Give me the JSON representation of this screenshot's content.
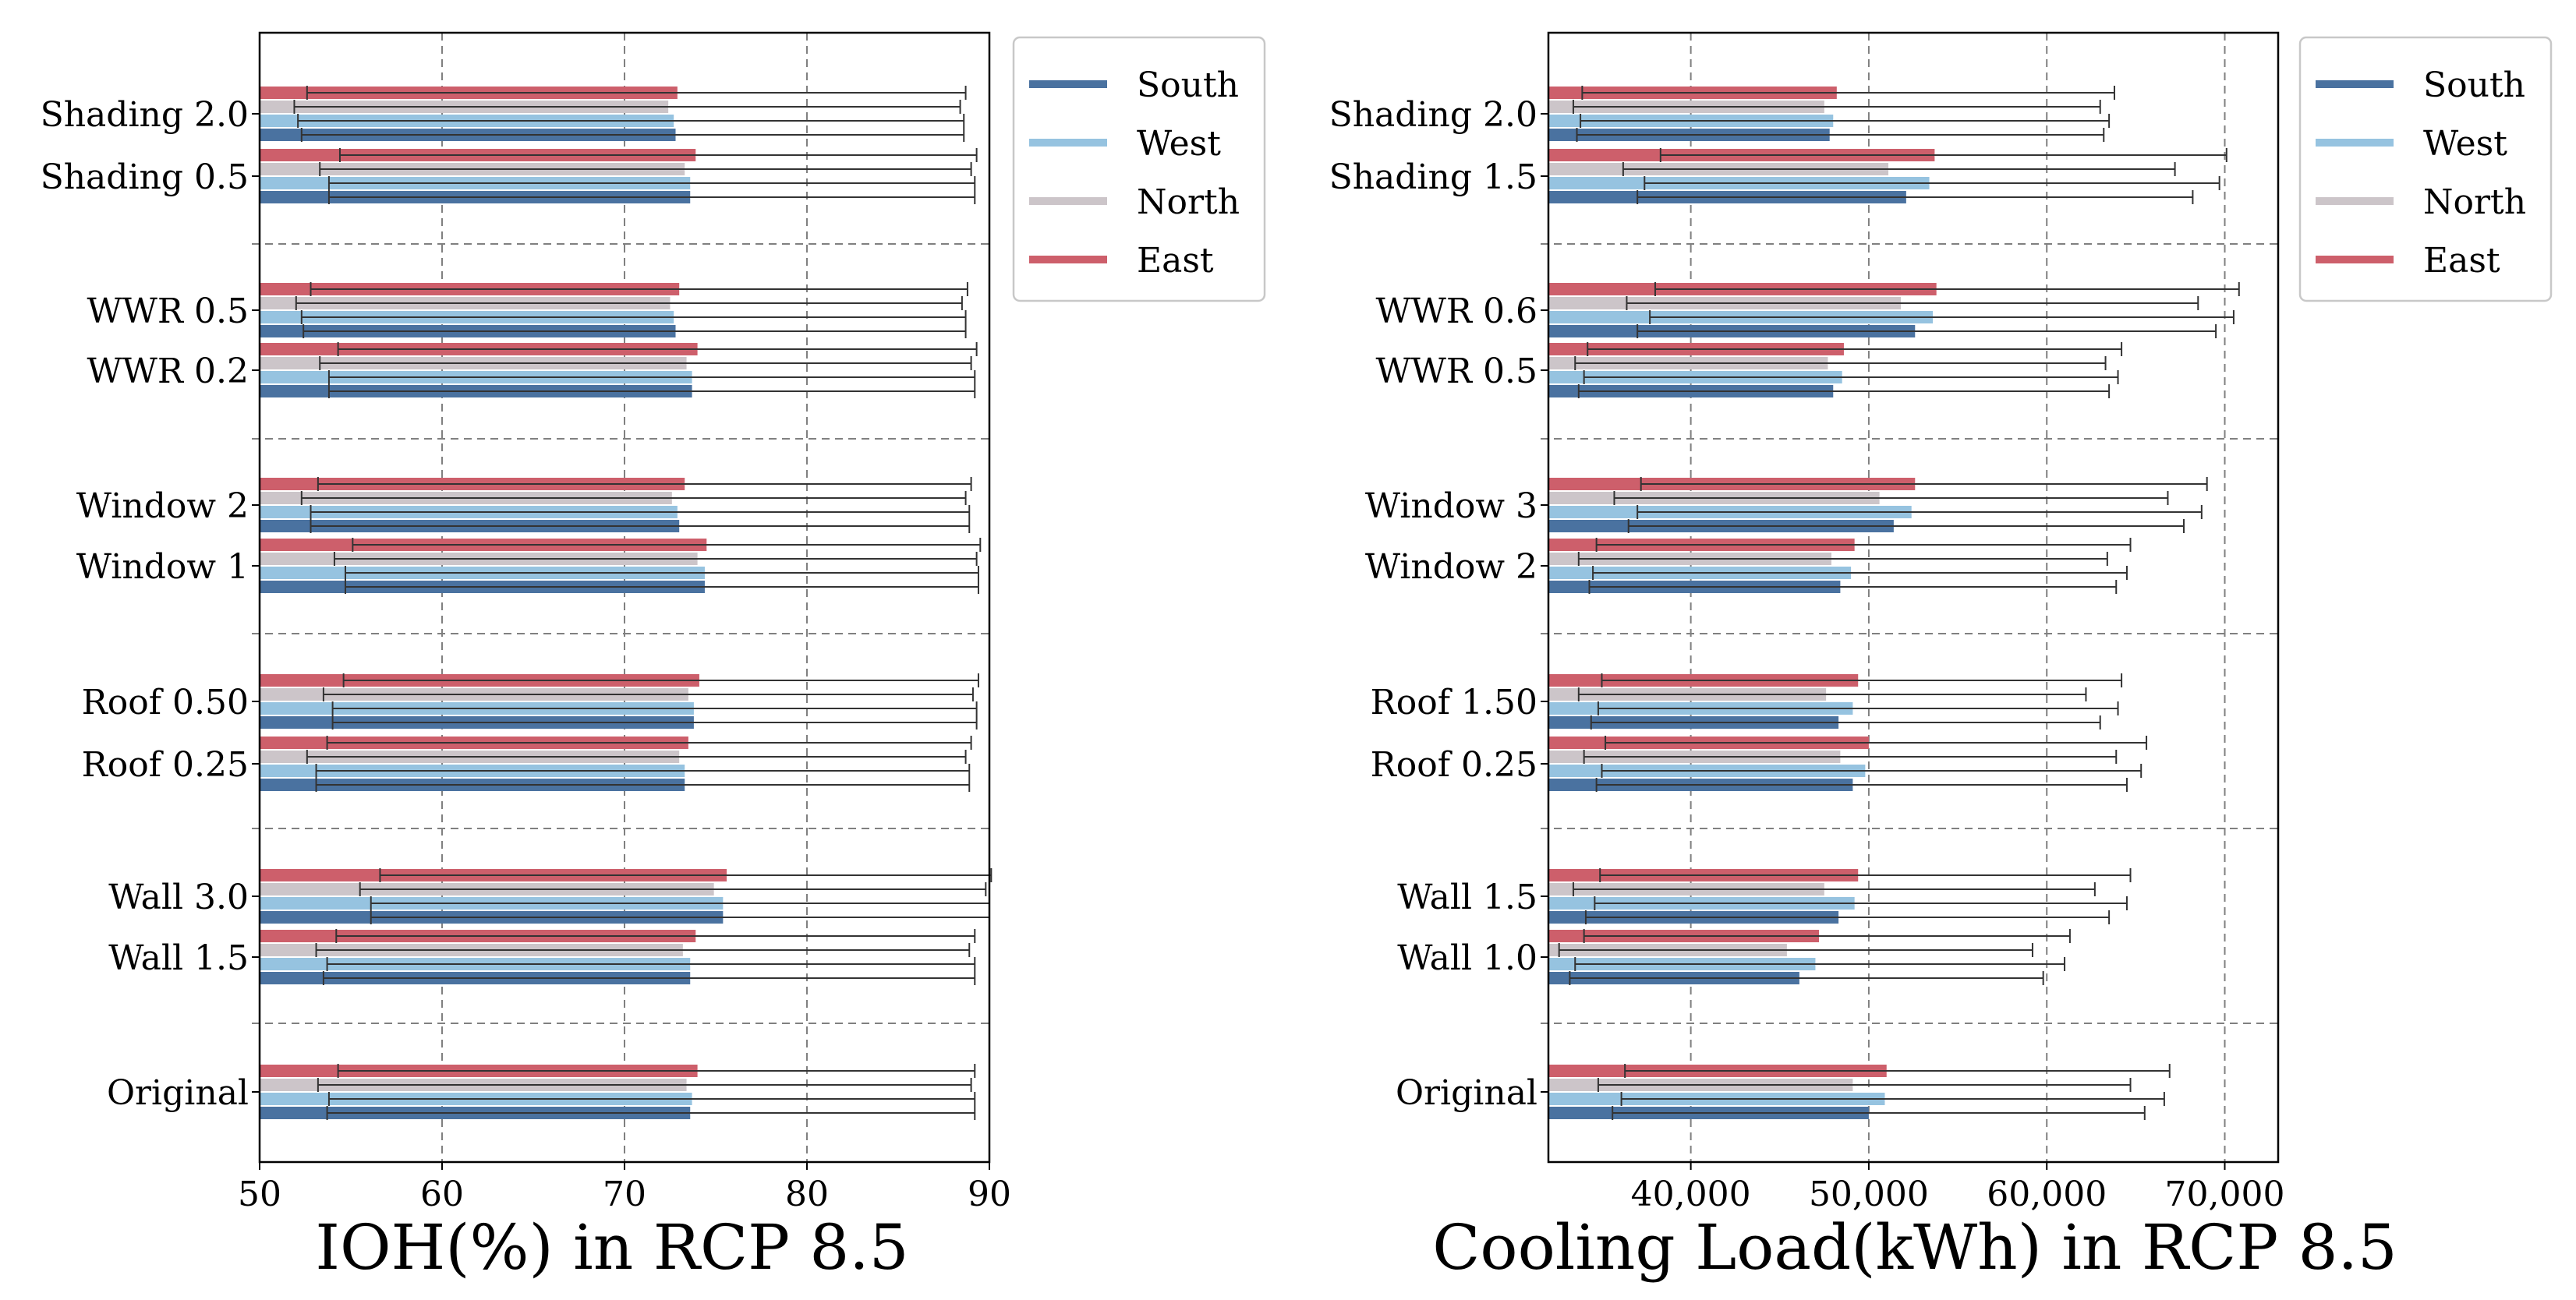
{
  "colors": {
    "South": "#4a72a0",
    "West": "#96c3e0",
    "North": "#ccc5c9",
    "East": "#cd5f6b"
  },
  "chart_data": [
    {
      "type": "bar",
      "orientation": "horizontal",
      "title": "",
      "xlabel": "IOH(%) in RCP 8.5",
      "ylabel": "",
      "xlim": [
        50,
        90
      ],
      "xticks": [
        50,
        60,
        70,
        80,
        90
      ],
      "xtick_labels": [
        "50",
        "60",
        "70",
        "80",
        "90"
      ],
      "grid": true,
      "legend": "outside-right-top",
      "legend_entries": [
        "South",
        "West",
        "North",
        "East"
      ],
      "categories": [
        "Shading 2.0",
        "Shading 0.5",
        "WWR 0.5",
        "WWR 0.2",
        "Window 2",
        "Window 1",
        "Roof 0.50",
        "Roof 0.25",
        "Wall 3.0",
        "Wall 1.5",
        "Original"
      ],
      "group_sizes": [
        2,
        2,
        2,
        2,
        2,
        1
      ],
      "series": [
        {
          "name": "South",
          "values": [
            72.8,
            73.6,
            72.8,
            73.7,
            73.0,
            74.4,
            73.8,
            73.3,
            75.4,
            73.6,
            73.6
          ],
          "err_low": [
            52.3,
            53.8,
            52.4,
            53.8,
            52.8,
            54.7,
            54.0,
            53.1,
            56.1,
            53.5,
            53.7
          ],
          "err_high": [
            88.6,
            89.2,
            88.7,
            89.2,
            88.9,
            89.4,
            89.3,
            88.9,
            90.0,
            89.2,
            89.2
          ]
        },
        {
          "name": "West",
          "values": [
            72.7,
            73.6,
            72.7,
            73.7,
            72.9,
            74.4,
            73.8,
            73.3,
            75.4,
            73.6,
            73.7
          ],
          "err_low": [
            52.1,
            53.8,
            52.3,
            53.8,
            52.8,
            54.7,
            54.0,
            53.1,
            56.1,
            53.7,
            53.8
          ],
          "err_high": [
            88.6,
            89.2,
            88.7,
            89.2,
            88.9,
            89.4,
            89.3,
            88.9,
            90.0,
            89.2,
            89.2
          ]
        },
        {
          "name": "North",
          "values": [
            72.4,
            73.3,
            72.5,
            73.4,
            72.6,
            74.0,
            73.5,
            73.0,
            74.9,
            73.2,
            73.4
          ],
          "err_low": [
            51.9,
            53.3,
            52.0,
            53.3,
            52.3,
            54.1,
            53.5,
            52.6,
            55.5,
            53.1,
            53.2
          ],
          "err_high": [
            88.4,
            89.0,
            88.5,
            89.0,
            88.7,
            89.3,
            89.1,
            88.7,
            89.8,
            88.9,
            89.0
          ]
        },
        {
          "name": "East",
          "values": [
            72.9,
            73.9,
            73.0,
            74.0,
            73.3,
            74.5,
            74.1,
            73.5,
            75.6,
            73.9,
            74.0
          ],
          "err_low": [
            52.6,
            54.4,
            52.8,
            54.3,
            53.2,
            55.1,
            54.6,
            53.7,
            56.6,
            54.2,
            54.3
          ],
          "err_high": [
            88.7,
            89.3,
            88.8,
            89.3,
            89.0,
            89.5,
            89.4,
            89.0,
            90.1,
            89.2,
            89.2
          ]
        }
      ]
    },
    {
      "type": "bar",
      "orientation": "horizontal",
      "title": "",
      "xlabel": "Cooling Load(kWh) in RCP 8.5",
      "ylabel": "",
      "xlim": [
        32000,
        73000
      ],
      "xticks": [
        40000,
        50000,
        60000,
        70000
      ],
      "xtick_labels": [
        "40,000",
        "50,000",
        "60,000",
        "70,000"
      ],
      "grid": true,
      "legend": "outside-right-top",
      "legend_entries": [
        "South",
        "West",
        "North",
        "East"
      ],
      "categories": [
        "Shading 2.0",
        "Shading 1.5",
        "WWR 0.6",
        "WWR 0.5",
        "Window 3",
        "Window 2",
        "Roof 1.50",
        "Roof 0.25",
        "Wall 1.5",
        "Wall 1.0",
        "Original"
      ],
      "group_sizes": [
        2,
        2,
        2,
        2,
        2,
        1
      ],
      "series": [
        {
          "name": "South",
          "values": [
            47800,
            52100,
            52600,
            48000,
            51400,
            48400,
            48300,
            49100,
            48300,
            46100,
            50000
          ],
          "err_low": [
            33600,
            37000,
            37000,
            33700,
            36500,
            34300,
            34400,
            34700,
            34100,
            33200,
            35600
          ],
          "err_high": [
            63200,
            68200,
            69500,
            63500,
            67700,
            63900,
            63000,
            64500,
            63500,
            59800,
            65500
          ]
        },
        {
          "name": "West",
          "values": [
            48000,
            53400,
            53600,
            48500,
            52400,
            49000,
            49100,
            49800,
            49200,
            47000,
            50900
          ],
          "err_low": [
            33800,
            37400,
            37700,
            34000,
            37000,
            34500,
            34800,
            35000,
            34600,
            33500,
            36100
          ],
          "err_high": [
            63500,
            69700,
            70500,
            64000,
            68700,
            64500,
            64000,
            65300,
            64500,
            61000,
            66600
          ]
        },
        {
          "name": "North",
          "values": [
            47500,
            51100,
            51800,
            47700,
            50600,
            47900,
            47600,
            48400,
            47500,
            45400,
            49100
          ],
          "err_low": [
            33400,
            36200,
            36400,
            33500,
            35700,
            33700,
            33700,
            34000,
            33400,
            32600,
            34800
          ],
          "err_high": [
            63000,
            67200,
            68500,
            63300,
            66800,
            63400,
            62200,
            63900,
            62700,
            59200,
            64700
          ]
        },
        {
          "name": "East",
          "values": [
            48200,
            53700,
            53800,
            48600,
            52600,
            49200,
            49400,
            50000,
            49400,
            47200,
            51000
          ],
          "err_low": [
            33900,
            38300,
            38000,
            34200,
            37200,
            34700,
            35000,
            35200,
            34900,
            34000,
            36300
          ],
          "err_high": [
            63800,
            70100,
            70800,
            64200,
            69000,
            64700,
            64200,
            65600,
            64700,
            61300,
            66900
          ]
        }
      ]
    }
  ]
}
